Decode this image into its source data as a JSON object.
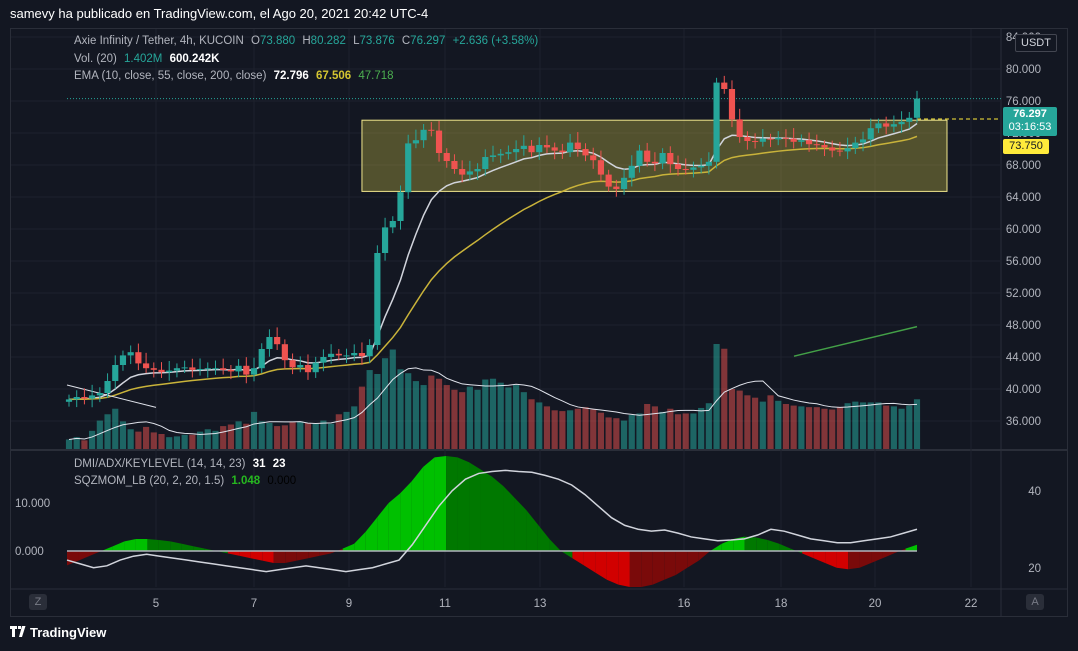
{
  "header": {
    "text": "samevy ha publicado en TradingView.com, el Ago 20, 2021 20:42 UTC-4"
  },
  "legend": {
    "symbol": "Axie Infinity / Tether, 4h, KUCOIN",
    "open_label": "O",
    "open": "73.880",
    "high_label": "H",
    "high": "80.282",
    "low_label": "L",
    "low": "73.876",
    "close_label": "C",
    "close": "76.297",
    "change": "+2.636 (+3.58%)",
    "vol_label": "Vol. (20)",
    "vol1": "1.402M",
    "vol2": "600.242K",
    "ema_label": "EMA (10, close, 55, close, 200, close)",
    "ema10": "72.796",
    "ema55": "67.506",
    "ema200": "47.718",
    "dmi_label": "DMI/ADX/KEYLEVEL (14, 14, 23)",
    "dmi1": "31",
    "dmi2": "23",
    "sqz_label": "SQZMOM_LB (20, 2, 20, 1.5)",
    "sqz1": "1.048",
    "sqz2": "0.000"
  },
  "price_badge": {
    "price": "76.297",
    "countdown": "03:16:53"
  },
  "keylevel_badge": "73.750",
  "currency": "USDT",
  "z_button": "Z",
  "a_button": "A",
  "footer": {
    "brand": "TradingView"
  },
  "chart_data": [
    {
      "type": "candlestick",
      "title": "Axie Infinity / Tether, 4h, KUCOIN",
      "ylim": [
        32.5,
        85
      ],
      "yticks": [
        "84.000",
        "80.000",
        "76.000",
        "72.000",
        "68.000",
        "64.000",
        "60.000",
        "56.000",
        "52.000",
        "48.000",
        "44.000",
        "40.000",
        "36.000"
      ],
      "x": [
        "5",
        "7",
        "9",
        "11",
        "13",
        "16",
        "18",
        "20",
        "22"
      ],
      "current_price": 76.297,
      "key_level": 73.75,
      "range_box": {
        "low": 64.7,
        "high": 73.6
      },
      "ema10_last": 72.796,
      "ema55_last": 67.506,
      "ema200_last": 47.718,
      "close_path": [
        38.7,
        39,
        38.8,
        39.2,
        39.5,
        41,
        43,
        44.2,
        44.6,
        43.2,
        42.6,
        42.4,
        42.1,
        42.3,
        42.6,
        42.7,
        42.4,
        42.5,
        42.6,
        42.6,
        42.4,
        42.2,
        42.9,
        41.8,
        42.6,
        45,
        46.5,
        45.6,
        43.6,
        42.7,
        43,
        42.1,
        43.3,
        44,
        44.4,
        44.2,
        44.2,
        44.5,
        44.1,
        45.5,
        57,
        60.2,
        61,
        64.6,
        70.7,
        71.1,
        72.4,
        72.3,
        69.5,
        68.5,
        67.5,
        66.8,
        67.2,
        67.5,
        69,
        69.2,
        69.4,
        69.6,
        70,
        70.4,
        69.6,
        70.5,
        70.2,
        69.8,
        69.6,
        70.8,
        70,
        69.2,
        68.6,
        66.8,
        65.3,
        65,
        66.4,
        67.9,
        69.8,
        68.4,
        68.2,
        69.5,
        68.1,
        67.5,
        67.4,
        67.7,
        67.9,
        68.4,
        78.3,
        77.5,
        73.7,
        71.5,
        71,
        70.9,
        71.3,
        71.2,
        71.4,
        71.3,
        70.9,
        71.1,
        70.6,
        70.5,
        70.2,
        69.8,
        69.7,
        70.1,
        70.8,
        71.2,
        72.6,
        73.2,
        72.8,
        73.1,
        73.4,
        73.9,
        76.3
      ],
      "volume_path": [
        1.2,
        1.5,
        1.1,
        2.3,
        3.6,
        4.4,
        5.1,
        3.5,
        2.5,
        2.2,
        2.8,
        2.1,
        1.9,
        1.5,
        1.6,
        1.8,
        1.8,
        2.2,
        2.5,
        2.3,
        2.9,
        3.1,
        3.5,
        3.2,
        4.7,
        3.5,
        3.3,
        2.9,
        3,
        3.4,
        3.5,
        3.3,
        3.2,
        3.6,
        3.2,
        4.4,
        4.7,
        5.4,
        7.9,
        10,
        9.5,
        11.5,
        12.6,
        10.1,
        9.6,
        8.6,
        8.1,
        9.3,
        8.9,
        8.1,
        7.5,
        7.2,
        7.9,
        7.5,
        8.8,
        8.9,
        8.4,
        7.8,
        8.1,
        7.2,
        6.3,
        5.9,
        5.4,
        4.9,
        4.8,
        4.9,
        5.1,
        5.3,
        5,
        4.6,
        4,
        3.9,
        3.6,
        4.3,
        4.5,
        5.7,
        5.4,
        4.7,
        5.1,
        4.4,
        4.5,
        4.5,
        5.2,
        5.8,
        13.3,
        12.7,
        7.6,
        7.4,
        6.8,
        6.5,
        6,
        6.8,
        6.1,
        5.7,
        5.5,
        5.4,
        5.3,
        5.3,
        5.1,
        5,
        5.3,
        5.8,
        6,
        5.9,
        5.9,
        5.9,
        5.5,
        5.4,
        5.1,
        5.5,
        6.3
      ],
      "trendline": {
        "from": 44.1,
        "to": 47.8
      }
    },
    {
      "type": "area",
      "title": "SQZMOM_LB (20, 2, 20, 1.5)",
      "yticks_left": [
        "10.000",
        "0.000"
      ],
      "yticks_right": [
        "40",
        "20"
      ],
      "last_value": 1.048,
      "adx_last": 31,
      "keylevel": 23
    }
  ],
  "colors": {
    "up": "#26a69a",
    "down": "#ef5350",
    "ema10": "#d1d4dc",
    "ema55": "#c9b33a",
    "ema200": "#43a047",
    "box_border": "#f0e68c",
    "key_level": "#ffeb3b"
  }
}
